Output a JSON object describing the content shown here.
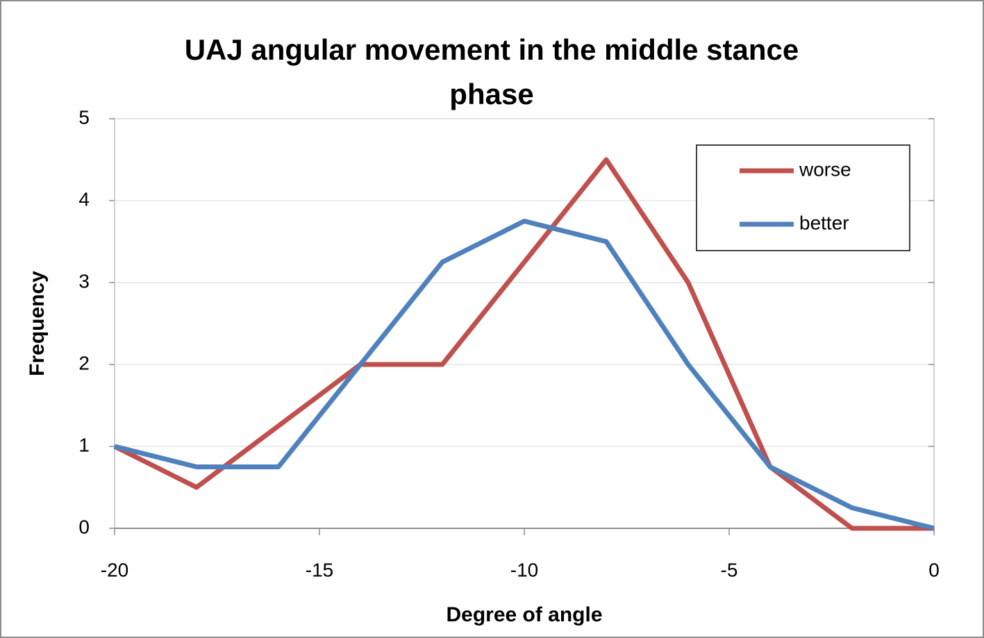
{
  "chart_data": {
    "type": "line",
    "title": "UAJ angular movement in the middle stance phase",
    "x_label": "Degree of angle",
    "y_label": "Frequency",
    "x": [
      -20,
      -18,
      -16,
      -14,
      -12,
      -10,
      -8,
      -6,
      -4,
      -2,
      0
    ],
    "series": [
      {
        "name": "worse",
        "color": "#c0504d",
        "values": [
          1,
          0.5,
          1.25,
          2,
          2,
          3.25,
          4.5,
          3,
          0.75,
          0,
          0
        ]
      },
      {
        "name": "better",
        "color": "#4f81bd",
        "values": [
          1,
          0.75,
          0.75,
          2,
          3.25,
          3.75,
          3.5,
          2,
          0.75,
          0.25,
          0
        ]
      }
    ],
    "xlim": [
      -20,
      0
    ],
    "xticks": [
      -20,
      -15,
      -10,
      -5,
      0
    ],
    "ylim": [
      0,
      5
    ],
    "yticks": [
      0,
      1,
      2,
      3,
      4,
      5
    ],
    "grid": true,
    "legend": "upper right"
  }
}
